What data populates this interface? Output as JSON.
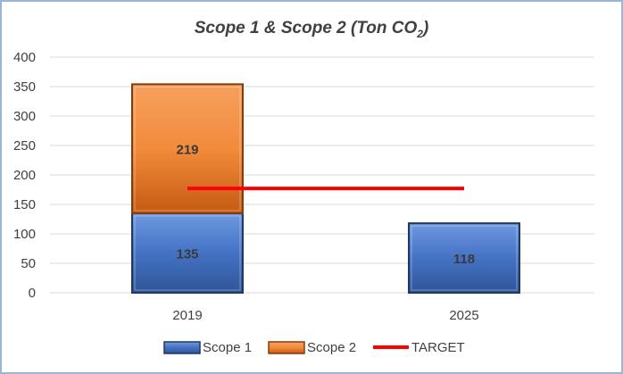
{
  "chart_data": {
    "type": "bar",
    "stacked": true,
    "title_main": "Scope 1 & Scope 2 (Ton CO",
    "title_sub": "2",
    "title_end": ")",
    "categories": [
      "2019",
      "2025"
    ],
    "series": [
      {
        "name": "Scope 1",
        "values": [
          135,
          118
        ],
        "color": "#4472c4"
      },
      {
        "name": "Scope 2",
        "values": [
          219,
          null
        ],
        "color": "#ed7d31"
      }
    ],
    "target": {
      "name": "TARGET",
      "value": 177,
      "color": "#ff0000"
    },
    "ylim": [
      0,
      400
    ],
    "yticks": [
      "0",
      "50",
      "100",
      "150",
      "200",
      "250",
      "300",
      "350",
      "400"
    ],
    "grid": true,
    "legend_position": "bottom"
  }
}
